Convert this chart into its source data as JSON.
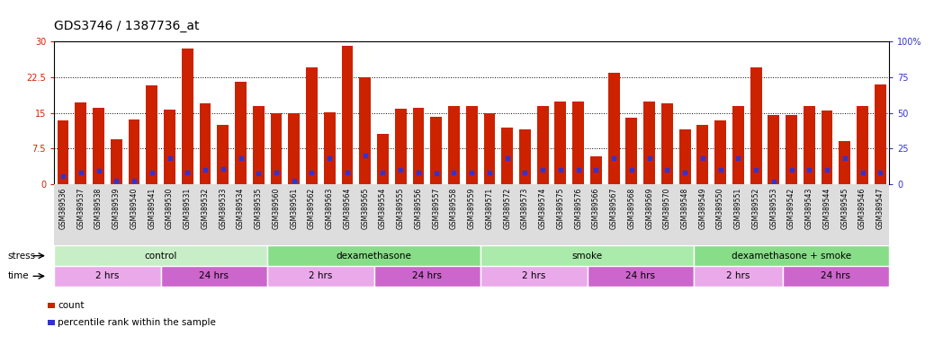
{
  "title": "GDS3746 / 1387736_at",
  "left_ylim": [
    0,
    30
  ],
  "right_ylim": [
    0,
    100
  ],
  "left_yticks": [
    0,
    7.5,
    15,
    22.5,
    30
  ],
  "right_yticks": [
    0,
    25,
    50,
    75,
    100
  ],
  "left_yticklabels": [
    "0",
    "7.5",
    "15",
    "22.5",
    "30"
  ],
  "right_yticklabels": [
    "0",
    "25",
    "50",
    "75",
    "100%"
  ],
  "bar_color": "#CC2200",
  "dot_color": "#3333CC",
  "categories": [
    "GSM389536",
    "GSM389537",
    "GSM389538",
    "GSM389539",
    "GSM389540",
    "GSM389541",
    "GSM389530",
    "GSM389531",
    "GSM389532",
    "GSM389533",
    "GSM389534",
    "GSM389535",
    "GSM389560",
    "GSM389561",
    "GSM389562",
    "GSM389563",
    "GSM389564",
    "GSM389565",
    "GSM389554",
    "GSM389555",
    "GSM389556",
    "GSM389557",
    "GSM389558",
    "GSM389559",
    "GSM389571",
    "GSM389572",
    "GSM389573",
    "GSM389574",
    "GSM389575",
    "GSM389576",
    "GSM389566",
    "GSM389567",
    "GSM389568",
    "GSM389569",
    "GSM389570",
    "GSM389548",
    "GSM389549",
    "GSM389550",
    "GSM389551",
    "GSM389552",
    "GSM389553",
    "GSM389542",
    "GSM389543",
    "GSM389544",
    "GSM389545",
    "GSM389546",
    "GSM389547"
  ],
  "bar_heights": [
    13.5,
    17.2,
    16.1,
    9.5,
    13.6,
    20.8,
    15.6,
    28.5,
    17.0,
    12.5,
    21.5,
    16.4,
    15.0,
    15.0,
    24.5,
    15.2,
    29.0,
    22.5,
    10.5,
    15.8,
    16.0,
    14.2,
    16.5,
    16.5,
    15.0,
    12.0,
    11.5,
    16.5,
    17.3,
    17.3,
    5.8,
    23.5,
    14.0,
    17.3,
    17.0,
    11.5,
    12.5,
    13.5,
    16.5,
    24.5,
    14.5,
    14.5,
    16.5,
    15.5,
    9.0,
    16.5,
    21.0
  ],
  "dot_heights": [
    1.8,
    2.5,
    2.8,
    0.8,
    0.8,
    2.5,
    5.5,
    2.5,
    3.0,
    3.2,
    5.5,
    2.2,
    2.5,
    0.8,
    2.5,
    5.5,
    2.5,
    6.0,
    2.5,
    3.0,
    2.5,
    2.2,
    2.5,
    2.5,
    2.5,
    5.5,
    2.5,
    3.0,
    3.0,
    3.0,
    3.0,
    5.5,
    3.0,
    5.5,
    3.0,
    2.5,
    5.5,
    3.0,
    5.5,
    3.0,
    0.5,
    3.0,
    3.0,
    3.0,
    5.5,
    2.5,
    2.5
  ],
  "stress_groups": [
    {
      "label": "control",
      "start": 0,
      "end": 12,
      "color": "#C8EEC8"
    },
    {
      "label": "dexamethasone",
      "start": 12,
      "end": 24,
      "color": "#88DD88"
    },
    {
      "label": "smoke",
      "start": 24,
      "end": 36,
      "color": "#AAEAAA"
    },
    {
      "label": "dexamethasone + smoke",
      "start": 36,
      "end": 47,
      "color": "#88DD88"
    }
  ],
  "time_groups": [
    {
      "label": "2 hrs",
      "start": 0,
      "end": 6,
      "color": "#EAAAEA"
    },
    {
      "label": "24 hrs",
      "start": 6,
      "end": 12,
      "color": "#CC66CC"
    },
    {
      "label": "2 hrs",
      "start": 12,
      "end": 18,
      "color": "#EAAAEA"
    },
    {
      "label": "24 hrs",
      "start": 18,
      "end": 24,
      "color": "#CC66CC"
    },
    {
      "label": "2 hrs",
      "start": 24,
      "end": 30,
      "color": "#EAAAEA"
    },
    {
      "label": "24 hrs",
      "start": 30,
      "end": 36,
      "color": "#CC66CC"
    },
    {
      "label": "2 hrs",
      "start": 36,
      "end": 41,
      "color": "#EAAAEA"
    },
    {
      "label": "24 hrs",
      "start": 41,
      "end": 47,
      "color": "#CC66CC"
    }
  ],
  "bg_color": "#FFFFFF",
  "stress_label": "stress",
  "time_label": "time",
  "legend_count": "count",
  "legend_pct": "percentile rank within the sample",
  "title_fontsize": 10,
  "tick_fontsize": 7,
  "xtick_fontsize": 5.5,
  "bar_width": 0.65,
  "xtick_bg_color": "#DDDDDD"
}
